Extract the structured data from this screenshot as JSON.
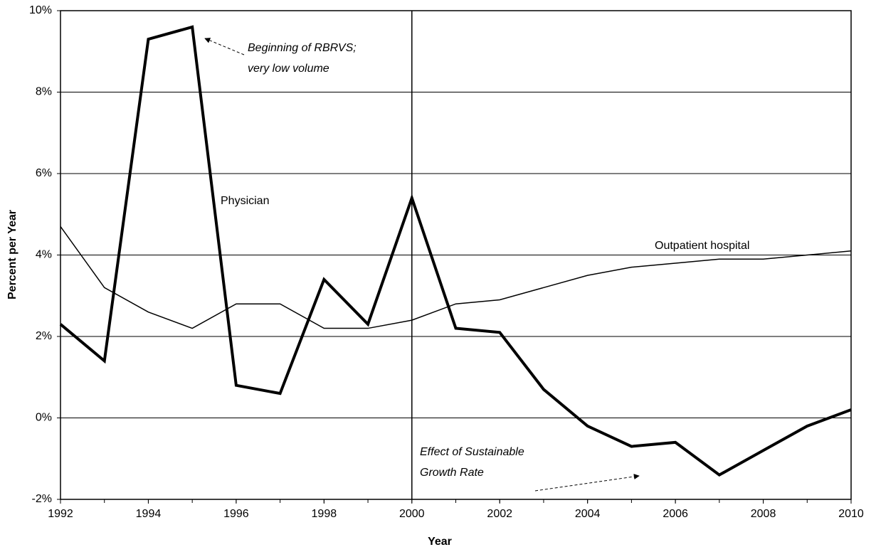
{
  "chart_data": {
    "type": "line",
    "x": [
      1992,
      1993,
      1994,
      1995,
      1996,
      1997,
      1998,
      1999,
      2000,
      2001,
      2002,
      2003,
      2004,
      2005,
      2006,
      2007,
      2008,
      2009,
      2010
    ],
    "series": [
      {
        "name": "Physician",
        "color": "#000000",
        "width": 4,
        "values": [
          2.3,
          1.4,
          9.3,
          9.6,
          0.8,
          0.6,
          3.4,
          2.3,
          5.4,
          2.2,
          2.1,
          0.7,
          -0.2,
          -0.7,
          -0.6,
          -1.4,
          -0.8,
          -0.2,
          0.2
        ]
      },
      {
        "name": "Outpatient hospital",
        "color": "#000000",
        "width": 1.5,
        "values": [
          4.7,
          3.2,
          2.6,
          2.2,
          2.8,
          2.8,
          2.2,
          2.2,
          2.4,
          2.8,
          2.9,
          3.2,
          3.5,
          3.7,
          3.8,
          3.9,
          3.9,
          4.0,
          4.1
        ]
      }
    ],
    "xlim": [
      1992,
      2010
    ],
    "xticks": [
      1992,
      1994,
      1996,
      1998,
      2000,
      2002,
      2004,
      2006,
      2008,
      2010
    ],
    "ylim": [
      -2,
      10
    ],
    "yticks": [
      {
        "value": -2,
        "label": "-2%"
      },
      {
        "value": 0,
        "label": "0%"
      },
      {
        "value": 2,
        "label": "2%"
      },
      {
        "value": 4,
        "label": "4%"
      },
      {
        "value": 6,
        "label": "6%"
      },
      {
        "value": 8,
        "label": "8%"
      },
      {
        "value": 10,
        "label": "10%"
      }
    ],
    "grid": true,
    "vline": 2000,
    "x_label": "Year",
    "y_label": "Percent per Year",
    "annotations": [
      {
        "lines": [
          "Beginning of RBRVS;",
          "very low volume"
        ]
      },
      {
        "lines": [
          "Effect of Sustainable",
          "Growth Rate"
        ]
      }
    ]
  }
}
